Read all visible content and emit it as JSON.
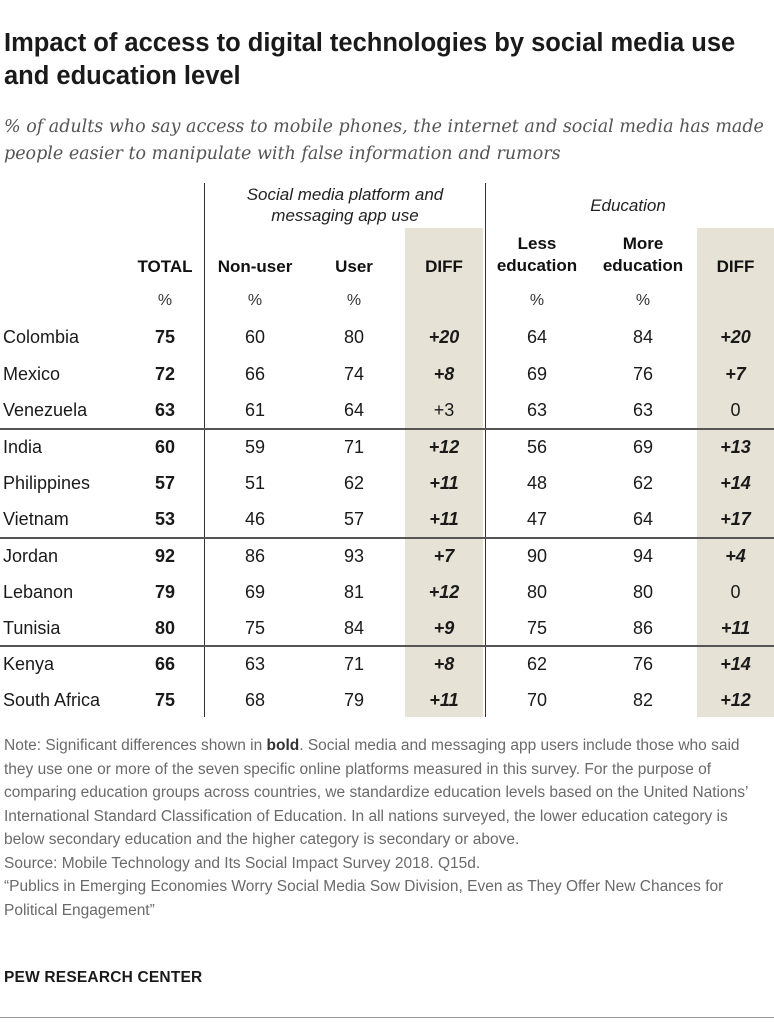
{
  "title": "Impact of access to digital technologies by social media use and education level",
  "subtitle": "% of adults who say access to mobile phones, the internet and social media has made people easier to manipulate with false information and rumors",
  "chart_data": {
    "type": "table",
    "group_headers": {
      "social": "Social media platform and messaging app use",
      "education": "Education"
    },
    "column_headers": {
      "total": "TOTAL",
      "nonuser": "Non-user",
      "user": "User",
      "diff1": "DIFF",
      "less": "Less education",
      "more": "More education",
      "diff2": "DIFF"
    },
    "unit_symbol": "%",
    "rows": [
      {
        "country": "Colombia",
        "total": "75",
        "nonuser": "60",
        "user": "80",
        "diff1": "+20",
        "diff1_sig": true,
        "less": "64",
        "more": "84",
        "diff2": "+20",
        "diff2_sig": true
      },
      {
        "country": "Mexico",
        "total": "72",
        "nonuser": "66",
        "user": "74",
        "diff1": "+8",
        "diff1_sig": true,
        "less": "69",
        "more": "76",
        "diff2": "+7",
        "diff2_sig": true
      },
      {
        "country": "Venezuela",
        "total": "63",
        "nonuser": "61",
        "user": "64",
        "diff1": "+3",
        "diff1_sig": false,
        "less": "63",
        "more": "63",
        "diff2": "0",
        "diff2_sig": false
      },
      {
        "country": "India",
        "total": "60",
        "nonuser": "59",
        "user": "71",
        "diff1": "+12",
        "diff1_sig": true,
        "less": "56",
        "more": "69",
        "diff2": "+13",
        "diff2_sig": true
      },
      {
        "country": "Philippines",
        "total": "57",
        "nonuser": "51",
        "user": "62",
        "diff1": "+11",
        "diff1_sig": true,
        "less": "48",
        "more": "62",
        "diff2": "+14",
        "diff2_sig": true
      },
      {
        "country": "Vietnam",
        "total": "53",
        "nonuser": "46",
        "user": "57",
        "diff1": "+11",
        "diff1_sig": true,
        "less": "47",
        "more": "64",
        "diff2": "+17",
        "diff2_sig": true
      },
      {
        "country": "Jordan",
        "total": "92",
        "nonuser": "86",
        "user": "93",
        "diff1": "+7",
        "diff1_sig": true,
        "less": "90",
        "more": "94",
        "diff2": "+4",
        "diff2_sig": true
      },
      {
        "country": "Lebanon",
        "total": "79",
        "nonuser": "69",
        "user": "81",
        "diff1": "+12",
        "diff1_sig": true,
        "less": "80",
        "more": "80",
        "diff2": "0",
        "diff2_sig": false
      },
      {
        "country": "Tunisia",
        "total": "80",
        "nonuser": "75",
        "user": "84",
        "diff1": "+9",
        "diff1_sig": true,
        "less": "75",
        "more": "86",
        "diff2": "+11",
        "diff2_sig": true
      },
      {
        "country": "Kenya",
        "total": "66",
        "nonuser": "63",
        "user": "71",
        "diff1": "+8",
        "diff1_sig": true,
        "less": "62",
        "more": "76",
        "diff2": "+14",
        "diff2_sig": true
      },
      {
        "country": "South Africa",
        "total": "75",
        "nonuser": "68",
        "user": "79",
        "diff1": "+11",
        "diff1_sig": true,
        "less": "70",
        "more": "82",
        "diff2": "+12",
        "diff2_sig": true
      }
    ]
  },
  "notes": {
    "note_prefix": "Note: Significant differences shown in",
    "note_bold": "bold",
    "note_rest": ". Social media and messaging app users include those who said they use one or more of the seven specific online platforms measured in this survey. For the purpose of comparing education groups across countries, we standardize education levels based on the United Nations’ International Standard Classification of Education. In all nations surveyed, the lower education category is below secondary education and the higher category is secondary or above.",
    "source": "Source: Mobile Technology and Its Social Impact Survey 2018. Q15d.",
    "report": "“Publics in Emerging Economies Worry Social Media Sow Division, Even as They Offer New Chances for Political Engagement”"
  },
  "brand": "PEW RESEARCH CENTER",
  "colors": {
    "diff_background": "#e6e2d6",
    "text": "#1a1a1a",
    "note_text": "#6a6a6a"
  }
}
